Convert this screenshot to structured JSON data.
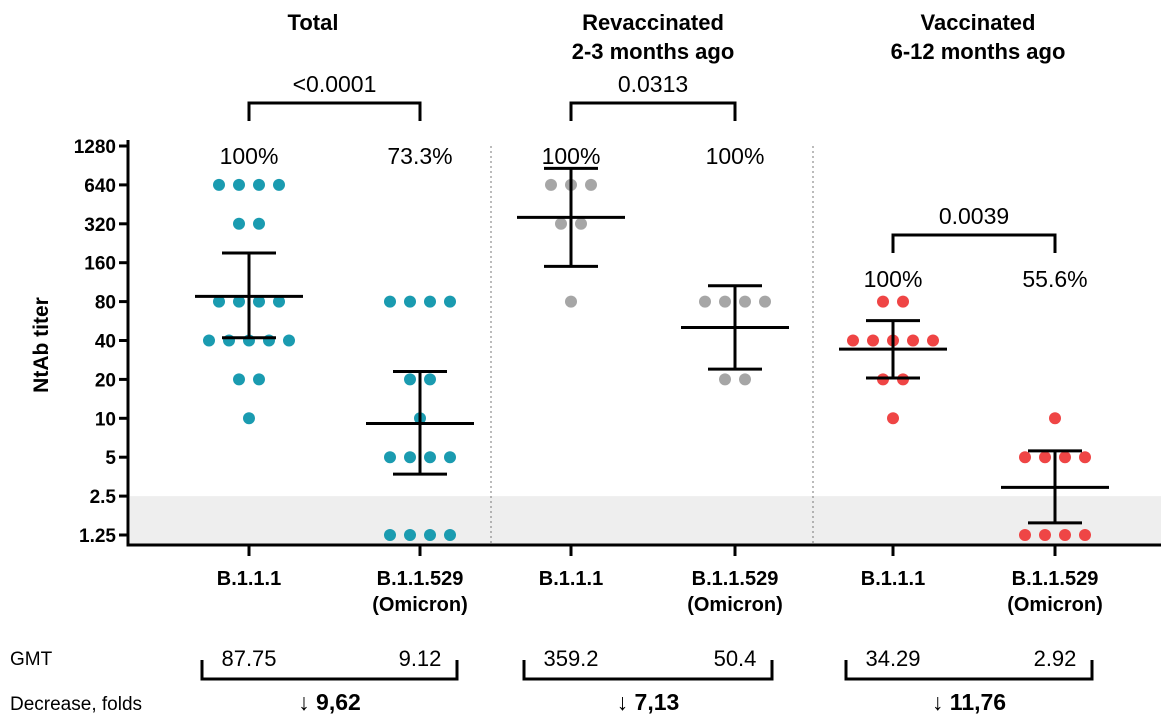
{
  "chart_data": {
    "type": "scatter",
    "ylabel": "NtAb titer",
    "yscale": "log2",
    "yticks": [
      "1280",
      "640",
      "320",
      "160",
      "80",
      "40",
      "20",
      "10",
      "5",
      "2.5",
      "1.25"
    ],
    "ytick_values": [
      1280,
      640,
      320,
      160,
      80,
      40,
      20,
      10,
      5,
      2.5,
      1.25
    ],
    "ylim": [
      1.25,
      1280
    ],
    "detection_limit": 2.5,
    "colors": {
      "total": "#1a9bb0",
      "revaccinated": "#a6a6a6",
      "vaccinated": "#ef4545",
      "shade": "#eeeeee"
    },
    "panels": [
      {
        "title": [
          "Total"
        ],
        "pvalue": "<0.0001",
        "color": "total",
        "groups": [
          {
            "label": [
              "B.1.1.1"
            ],
            "percent": "100%",
            "gmt": "87.75",
            "mean": 87.75,
            "ci": [
              42,
              190
            ],
            "points": [
              {
                "y": 640,
                "n": 4
              },
              {
                "y": 320,
                "n": 2
              },
              {
                "y": 80,
                "n": 4
              },
              {
                "y": 40,
                "n": 5
              },
              {
                "y": 20,
                "n": 2
              },
              {
                "y": 10,
                "n": 1
              }
            ]
          },
          {
            "label": [
              "B.1.1.529",
              "(Omicron)"
            ],
            "percent": "73.3%",
            "gmt": "9.12",
            "mean": 9.12,
            "ci": [
              3.7,
              23
            ],
            "points": [
              {
                "y": 80,
                "n": 4
              },
              {
                "y": 20,
                "n": 2
              },
              {
                "y": 10,
                "n": 1
              },
              {
                "y": 5,
                "n": 4
              },
              {
                "y": 1.25,
                "n": 4
              }
            ]
          }
        ],
        "fold": "↓ 9,62"
      },
      {
        "title": [
          "Revaccinated",
          "2-3 months ago"
        ],
        "pvalue": "0.0313",
        "color": "revaccinated",
        "groups": [
          {
            "label": [
              "B.1.1.1"
            ],
            "percent": "100%",
            "gmt": "359.2",
            "mean": 359.2,
            "ci": [
              150,
              860
            ],
            "points": [
              {
                "y": 640,
                "n": 3
              },
              {
                "y": 320,
                "n": 2
              },
              {
                "y": 80,
                "n": 1
              }
            ]
          },
          {
            "label": [
              "B.1.1.529",
              "(Omicron)"
            ],
            "percent": "100%",
            "gmt": "50.4",
            "mean": 50.4,
            "ci": [
              24,
              106
            ],
            "points": [
              {
                "y": 80,
                "n": 4
              },
              {
                "y": 20,
                "n": 2
              }
            ]
          }
        ],
        "fold": "↓ 7,13"
      },
      {
        "title": [
          "Vaccinated",
          "6-12 months ago"
        ],
        "pvalue": "0.0039",
        "color": "vaccinated",
        "groups": [
          {
            "label": [
              "B.1.1.1"
            ],
            "percent": "100%",
            "gmt": "34.29",
            "mean": 34.29,
            "ci": [
              20.5,
              57
            ],
            "points": [
              {
                "y": 80,
                "n": 2
              },
              {
                "y": 40,
                "n": 5
              },
              {
                "y": 20,
                "n": 2
              },
              {
                "y": 10,
                "n": 1
              }
            ]
          },
          {
            "label": [
              "B.1.1.529",
              "(Omicron)"
            ],
            "percent": "55.6%",
            "gmt": "2.92",
            "mean": 2.92,
            "ci": [
              1.55,
              5.6
            ],
            "points": [
              {
                "y": 10,
                "n": 1
              },
              {
                "y": 5,
                "n": 4
              },
              {
                "y": 1.25,
                "n": 4
              }
            ]
          }
        ],
        "fold": "↓ 11,76"
      }
    ],
    "row_labels": {
      "gmt": "GMT",
      "fold": "Decrease, folds"
    }
  }
}
